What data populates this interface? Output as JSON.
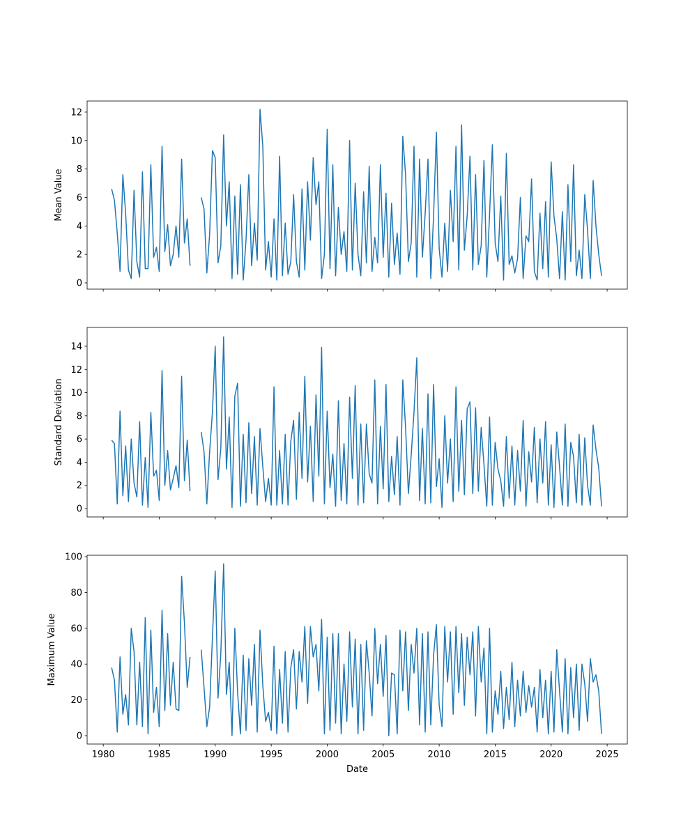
{
  "chart_data": [
    {
      "type": "line",
      "ylabel": "Mean Value",
      "xlim": [
        1978.56,
        2026.8
      ],
      "ylim": [
        -0.44,
        12.78
      ],
      "xticks": [
        1980,
        1985,
        1990,
        1995,
        2000,
        2005,
        2010,
        2015,
        2020,
        2025
      ],
      "yticks": [
        0,
        2,
        4,
        6,
        8,
        10,
        12
      ],
      "show_xtick_labels": false,
      "x": [
        1980.75,
        1981,
        1981.25,
        1981.5,
        1981.75,
        1982,
        1982.25,
        1982.5,
        1982.75,
        1983,
        1983.25,
        1983.5,
        1983.75,
        1984,
        1984.25,
        1984.5,
        1984.75,
        1985,
        1985.25,
        1985.5,
        1985.75,
        1986,
        1986.25,
        1986.5,
        1986.75,
        1987,
        1987.25,
        1987.5,
        1987.75,
        1988,
        1988.25,
        1988.5,
        1988.75,
        1989,
        1989.25,
        1989.5,
        1989.75,
        1990,
        1990.25,
        1990.5,
        1990.75,
        1991,
        1991.25,
        1991.5,
        1991.75,
        1992,
        1992.25,
        1992.5,
        1992.75,
        1993,
        1993.25,
        1993.5,
        1993.75,
        1994,
        1994.25,
        1994.5,
        1994.75,
        1995,
        1995.25,
        1995.5,
        1995.75,
        1996,
        1996.25,
        1996.5,
        1996.75,
        1997,
        1997.25,
        1997.5,
        1997.75,
        1998,
        1998.25,
        1998.5,
        1998.75,
        1999,
        1999.25,
        1999.5,
        1999.75,
        2000,
        2000.25,
        2000.5,
        2000.75,
        2001,
        2001.25,
        2001.5,
        2001.75,
        2002,
        2002.25,
        2002.5,
        2002.75,
        2003,
        2003.25,
        2003.5,
        2003.75,
        2004,
        2004.25,
        2004.5,
        2004.75,
        2005,
        2005.25,
        2005.5,
        2005.75,
        2006,
        2006.25,
        2006.5,
        2006.75,
        2007,
        2007.25,
        2007.5,
        2007.75,
        2008,
        2008.25,
        2008.5,
        2008.75,
        2009,
        2009.25,
        2009.5,
        2009.75,
        2010,
        2010.25,
        2010.5,
        2010.75,
        2011,
        2011.25,
        2011.5,
        2011.75,
        2012,
        2012.25,
        2012.5,
        2012.75,
        2013,
        2013.25,
        2013.5,
        2013.75,
        2014,
        2014.25,
        2014.5,
        2014.75,
        2015,
        2015.25,
        2015.5,
        2015.75,
        2016,
        2016.25,
        2016.5,
        2016.75,
        2017,
        2017.25,
        2017.5,
        2017.75,
        2018,
        2018.25,
        2018.5,
        2018.75,
        2019,
        2019.25,
        2019.5,
        2019.75,
        2020,
        2020.25,
        2020.5,
        2020.75,
        2021,
        2021.25,
        2021.5,
        2021.75,
        2022,
        2022.25,
        2022.5,
        2022.75,
        2023,
        2023.25,
        2023.5,
        2023.75,
        2024,
        2024.25,
        2024.5
      ],
      "series": [
        {
          "color": "#1f77b4",
          "values": [
            6.6,
            5.8,
            3.5,
            0.8,
            7.6,
            4.9,
            0.9,
            0.3,
            6.5,
            1.5,
            0.4,
            7.8,
            1.0,
            1.0,
            8.3,
            1.8,
            2.5,
            0.8,
            9.6,
            2.2,
            4.1,
            1.2,
            2.0,
            4.0,
            1.8,
            8.7,
            2.8,
            4.5,
            1.2,
            null,
            null,
            null,
            6.0,
            5.2,
            0.7,
            3.4,
            9.3,
            8.8,
            1.4,
            2.6,
            10.4,
            4.0,
            7.1,
            0.3,
            6.1,
            0.6,
            6.9,
            0.2,
            3.0,
            7.6,
            1.2,
            4.2,
            1.6,
            12.2,
            9.6,
            0.9,
            2.9,
            0.4,
            4.5,
            0.2,
            8.9,
            0.5,
            4.2,
            0.6,
            1.5,
            6.2,
            1.5,
            0.4,
            6.6,
            0.9,
            7.1,
            3.0,
            8.8,
            5.5,
            7.1,
            0.3,
            2.0,
            10.8,
            1.0,
            8.3,
            0.5,
            5.3,
            2.0,
            3.6,
            0.8,
            10.0,
            0.9,
            7.0,
            2.0,
            0.5,
            6.4,
            1.4,
            8.2,
            0.8,
            3.2,
            1.4,
            8.3,
            1.8,
            6.3,
            0.4,
            5.6,
            1.3,
            3.5,
            0.6,
            10.3,
            7.6,
            1.5,
            2.8,
            9.6,
            0.4,
            8.7,
            1.8,
            4.9,
            8.7,
            0.3,
            4.7,
            10.6,
            2.4,
            0.4,
            4.2,
            0.8,
            6.5,
            2.9,
            9.6,
            0.9,
            11.1,
            2.3,
            4.7,
            8.9,
            0.9,
            7.6,
            1.3,
            2.6,
            8.6,
            0.4,
            4.8,
            9.7,
            2.8,
            1.5,
            6.1,
            0.2,
            9.1,
            1.3,
            1.9,
            0.7,
            1.7,
            6.0,
            0.3,
            3.3,
            2.9,
            7.3,
            0.8,
            0.2,
            4.9,
            1.0,
            5.7,
            0.4,
            8.5,
            4.7,
            3.1,
            0.3,
            5.0,
            0.2,
            6.9,
            1.5,
            8.3,
            0.5,
            2.3,
            0.3,
            6.2,
            3.7,
            0.3,
            7.2,
            4.0,
            2.0,
            0.5
          ]
        }
      ]
    },
    {
      "type": "line",
      "ylabel": "Standard Deviation",
      "xlim": [
        1978.56,
        2026.8
      ],
      "ylim": [
        -0.72,
        15.62
      ],
      "xticks": [
        1980,
        1985,
        1990,
        1995,
        2000,
        2005,
        2010,
        2015,
        2020,
        2025
      ],
      "yticks": [
        0,
        2,
        4,
        6,
        8,
        10,
        12,
        14
      ],
      "show_xtick_labels": false,
      "x": [
        1980.75,
        1981,
        1981.25,
        1981.5,
        1981.75,
        1982,
        1982.25,
        1982.5,
        1982.75,
        1983,
        1983.25,
        1983.5,
        1983.75,
        1984,
        1984.25,
        1984.5,
        1984.75,
        1985,
        1985.25,
        1985.5,
        1985.75,
        1986,
        1986.25,
        1986.5,
        1986.75,
        1987,
        1987.25,
        1987.5,
        1987.75,
        1988,
        1988.25,
        1988.5,
        1988.75,
        1989,
        1989.25,
        1989.5,
        1989.75,
        1990,
        1990.25,
        1990.5,
        1990.75,
        1991,
        1991.25,
        1991.5,
        1991.75,
        1992,
        1992.25,
        1992.5,
        1992.75,
        1993,
        1993.25,
        1993.5,
        1993.75,
        1994,
        1994.25,
        1994.5,
        1994.75,
        1995,
        1995.25,
        1995.5,
        1995.75,
        1996,
        1996.25,
        1996.5,
        1996.75,
        1997,
        1997.25,
        1997.5,
        1997.75,
        1998,
        1998.25,
        1998.5,
        1998.75,
        1999,
        1999.25,
        1999.5,
        1999.75,
        2000,
        2000.25,
        2000.5,
        2000.75,
        2001,
        2001.25,
        2001.5,
        2001.75,
        2002,
        2002.25,
        2002.5,
        2002.75,
        2003,
        2003.25,
        2003.5,
        2003.75,
        2004,
        2004.25,
        2004.5,
        2004.75,
        2005,
        2005.25,
        2005.5,
        2005.75,
        2006,
        2006.25,
        2006.5,
        2006.75,
        2007,
        2007.25,
        2007.5,
        2007.75,
        2008,
        2008.25,
        2008.5,
        2008.75,
        2009,
        2009.25,
        2009.5,
        2009.75,
        2010,
        2010.25,
        2010.5,
        2010.75,
        2011,
        2011.25,
        2011.5,
        2011.75,
        2012,
        2012.25,
        2012.5,
        2012.75,
        2013,
        2013.25,
        2013.5,
        2013.75,
        2014,
        2014.25,
        2014.5,
        2014.75,
        2015,
        2015.25,
        2015.5,
        2015.75,
        2016,
        2016.25,
        2016.5,
        2016.75,
        2017,
        2017.25,
        2017.5,
        2017.75,
        2018,
        2018.25,
        2018.5,
        2018.75,
        2019,
        2019.25,
        2019.5,
        2019.75,
        2020,
        2020.25,
        2020.5,
        2020.75,
        2021,
        2021.25,
        2021.5,
        2021.75,
        2022,
        2022.25,
        2022.5,
        2022.75,
        2023,
        2023.25,
        2023.5,
        2023.75,
        2024,
        2024.25,
        2024.5
      ],
      "series": [
        {
          "color": "#1f77b4",
          "values": [
            5.9,
            5.6,
            0.4,
            8.4,
            1.1,
            5.4,
            0.6,
            6.0,
            2.2,
            1.0,
            7.5,
            0.3,
            4.4,
            0.1,
            8.3,
            2.8,
            3.3,
            0.7,
            11.9,
            2.0,
            5.0,
            1.6,
            2.6,
            3.7,
            1.8,
            11.4,
            2.4,
            5.9,
            1.5,
            null,
            null,
            null,
            6.6,
            4.9,
            0.4,
            4.9,
            8.3,
            14.0,
            2.5,
            5.2,
            14.8,
            3.4,
            7.9,
            0.1,
            9.7,
            10.8,
            0.2,
            6.4,
            0.5,
            7.4,
            1.3,
            6.2,
            0.3,
            6.9,
            3.6,
            0.6,
            2.6,
            0.3,
            10.5,
            0.3,
            5.0,
            0.4,
            6.4,
            0.3,
            5.8,
            7.6,
            0.8,
            8.3,
            2.6,
            11.4,
            2.3,
            7.1,
            0.6,
            9.8,
            2.8,
            13.9,
            0.4,
            8.4,
            1.8,
            4.7,
            0.2,
            9.3,
            0.7,
            5.6,
            0.4,
            9.6,
            2.6,
            10.6,
            0.3,
            7.3,
            0.5,
            7.3,
            3.0,
            2.2,
            11.1,
            0.4,
            7.1,
            1.7,
            10.7,
            0.6,
            4.5,
            1.2,
            6.2,
            0.3,
            11.1,
            7.0,
            1.3,
            4.6,
            8.3,
            13.0,
            0.7,
            6.9,
            0.4,
            9.9,
            0.5,
            10.7,
            1.9,
            4.3,
            0.1,
            8.0,
            2.2,
            6.0,
            0.6,
            10.5,
            1.5,
            7.6,
            1.2,
            8.6,
            9.2,
            1.3,
            8.7,
            1.5,
            7.0,
            3.8,
            0.2,
            7.9,
            0.3,
            5.7,
            3.4,
            2.4,
            0.2,
            6.2,
            0.9,
            5.4,
            0.3,
            5.0,
            1.5,
            7.6,
            0.2,
            4.9,
            2.3,
            7.0,
            0.5,
            6.0,
            2.2,
            7.5,
            0.3,
            5.5,
            0.1,
            6.6,
            3.6,
            0.3,
            7.3,
            0.2,
            5.7,
            4.5,
            0.5,
            6.4,
            0.3,
            6.1,
            2.0,
            0.3,
            7.2,
            5.1,
            3.5,
            0.2
          ]
        }
      ]
    },
    {
      "type": "line",
      "ylabel": "Maximum Value",
      "xlabel": "Date",
      "xlim": [
        1978.56,
        2026.8
      ],
      "ylim": [
        -4.67,
        100.8
      ],
      "xticks": [
        1980,
        1985,
        1990,
        1995,
        2000,
        2005,
        2010,
        2015,
        2020,
        2025
      ],
      "yticks": [
        0,
        20,
        40,
        60,
        80,
        100
      ],
      "show_xtick_labels": true,
      "x": [
        1980.75,
        1981,
        1981.25,
        1981.5,
        1981.75,
        1982,
        1982.25,
        1982.5,
        1982.75,
        1983,
        1983.25,
        1983.5,
        1983.75,
        1984,
        1984.25,
        1984.5,
        1984.75,
        1985,
        1985.25,
        1985.5,
        1985.75,
        1986,
        1986.25,
        1986.5,
        1986.75,
        1987,
        1987.25,
        1987.5,
        1987.75,
        1988,
        1988.25,
        1988.5,
        1988.75,
        1989,
        1989.25,
        1989.5,
        1989.75,
        1990,
        1990.25,
        1990.5,
        1990.75,
        1991,
        1991.25,
        1991.5,
        1991.75,
        1992,
        1992.25,
        1992.5,
        1992.75,
        1993,
        1993.25,
        1993.5,
        1993.75,
        1994,
        1994.25,
        1994.5,
        1994.75,
        1995,
        1995.25,
        1995.5,
        1995.75,
        1996,
        1996.25,
        1996.5,
        1996.75,
        1997,
        1997.25,
        1997.5,
        1997.75,
        1998,
        1998.25,
        1998.5,
        1998.75,
        1999,
        1999.25,
        1999.5,
        1999.75,
        2000,
        2000.25,
        2000.5,
        2000.75,
        2001,
        2001.25,
        2001.5,
        2001.75,
        2002,
        2002.25,
        2002.5,
        2002.75,
        2003,
        2003.25,
        2003.5,
        2003.75,
        2004,
        2004.25,
        2004.5,
        2004.75,
        2005,
        2005.25,
        2005.5,
        2005.75,
        2006,
        2006.25,
        2006.5,
        2006.75,
        2007,
        2007.25,
        2007.5,
        2007.75,
        2008,
        2008.25,
        2008.5,
        2008.75,
        2009,
        2009.25,
        2009.5,
        2009.75,
        2010,
        2010.25,
        2010.5,
        2010.75,
        2011,
        2011.25,
        2011.5,
        2011.75,
        2012,
        2012.25,
        2012.5,
        2012.75,
        2013,
        2013.25,
        2013.5,
        2013.75,
        2014,
        2014.25,
        2014.5,
        2014.75,
        2015,
        2015.25,
        2015.5,
        2015.75,
        2016,
        2016.25,
        2016.5,
        2016.75,
        2017,
        2017.25,
        2017.5,
        2017.75,
        2018,
        2018.25,
        2018.5,
        2018.75,
        2019,
        2019.25,
        2019.5,
        2019.75,
        2020,
        2020.25,
        2020.5,
        2020.75,
        2021,
        2021.25,
        2021.5,
        2021.75,
        2022,
        2022.25,
        2022.5,
        2022.75,
        2023,
        2023.25,
        2023.5,
        2023.75,
        2024,
        2024.25,
        2024.5
      ],
      "series": [
        {
          "color": "#1f77b4",
          "values": [
            38,
            31,
            2,
            44,
            12,
            23,
            6,
            60,
            47,
            6,
            41,
            5,
            66,
            1,
            59,
            13,
            27,
            5,
            70,
            14,
            57,
            17,
            41,
            15,
            14,
            89,
            63,
            27,
            44,
            null,
            null,
            null,
            48,
            27,
            5,
            16,
            55,
            92,
            21,
            46,
            96,
            23,
            41,
            0,
            60,
            24,
            1,
            45,
            3,
            43,
            17,
            51,
            2,
            59,
            28,
            8,
            13,
            3,
            50,
            1,
            37,
            7,
            47,
            2,
            38,
            48,
            15,
            47,
            30,
            61,
            18,
            61,
            44,
            51,
            25,
            65,
            1,
            55,
            3,
            57,
            7,
            57,
            1,
            40,
            8,
            58,
            16,
            54,
            1,
            51,
            3,
            53,
            35,
            11,
            60,
            29,
            51,
            22,
            56,
            0,
            35,
            34,
            1,
            59,
            25,
            58,
            14,
            51,
            35,
            60,
            6,
            57,
            2,
            58,
            6,
            45,
            62,
            17,
            5,
            61,
            30,
            58,
            12,
            61,
            24,
            57,
            17,
            55,
            34,
            58,
            11,
            61,
            30,
            49,
            1,
            60,
            2,
            25,
            12,
            36,
            4,
            27,
            9,
            41,
            5,
            31,
            11,
            36,
            13,
            28,
            16,
            27,
            2,
            37,
            10,
            31,
            1,
            36,
            2,
            48,
            25,
            2,
            43,
            1,
            38,
            10,
            40,
            3,
            40,
            29,
            8,
            43,
            30,
            34,
            25,
            1
          ]
        }
      ]
    }
  ]
}
